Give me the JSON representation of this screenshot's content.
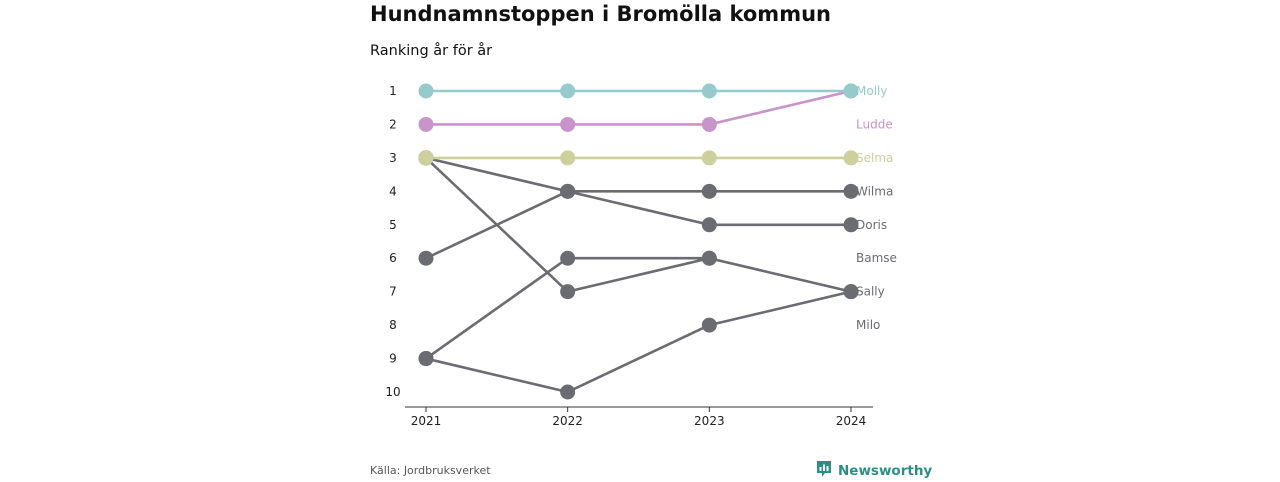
{
  "title": "Hundnamnstoppen i Bromölla kommun",
  "subtitle": "Ranking år för år",
  "source": "Källa: Jordbruksverket",
  "brand": {
    "name": "Newsworthy",
    "icon": "bar-chart-speech-icon",
    "color": "#2a9086"
  },
  "chart_data": {
    "type": "line",
    "subtype": "bump",
    "x": [
      "2021",
      "2022",
      "2023",
      "2024"
    ],
    "y_ticks": [
      "1",
      "2",
      "3",
      "4",
      "5",
      "6",
      "7",
      "8",
      "9",
      "10"
    ],
    "ylim": [
      1,
      10
    ],
    "y_inverted": true,
    "grid": false,
    "series": [
      {
        "name": "Wilma",
        "values": [
          6,
          4,
          4,
          4
        ],
        "color": "#6b6b72",
        "highlight": false
      },
      {
        "name": "Doris",
        "values": [
          3,
          4,
          5,
          5
        ],
        "color": "#6b6b72",
        "highlight": false
      },
      {
        "name": "Bamse",
        "values": [
          9,
          6,
          6,
          null
        ],
        "color": "#6b6b72",
        "highlight": false
      },
      {
        "name": "Sally",
        "values": [
          3,
          7,
          6,
          7
        ],
        "color": "#6b6b72",
        "highlight": false
      },
      {
        "name": "Milo",
        "values": [
          9,
          10,
          8,
          7
        ],
        "color": "#6b6b72",
        "highlight": false
      },
      {
        "name": "Selma",
        "values": [
          3,
          3,
          3,
          3
        ],
        "color": "#cdcf9c",
        "highlight": true
      },
      {
        "name": "Ludde",
        "values": [
          2,
          2,
          2,
          1
        ],
        "color": "#c894c9",
        "highlight": true
      },
      {
        "name": "Molly",
        "values": [
          1,
          1,
          1,
          1
        ],
        "color": "#96cacc",
        "highlight": true
      }
    ],
    "end_labels": [
      {
        "name": "Molly",
        "rank": 1
      },
      {
        "name": "Ludde",
        "rank": 2
      },
      {
        "name": "Selma",
        "rank": 3
      },
      {
        "name": "Wilma",
        "rank": 4
      },
      {
        "name": "Doris",
        "rank": 5
      },
      {
        "name": "Bamse",
        "rank": 6
      },
      {
        "name": "Sally",
        "rank": 7
      },
      {
        "name": "Milo",
        "rank": 8
      }
    ]
  }
}
